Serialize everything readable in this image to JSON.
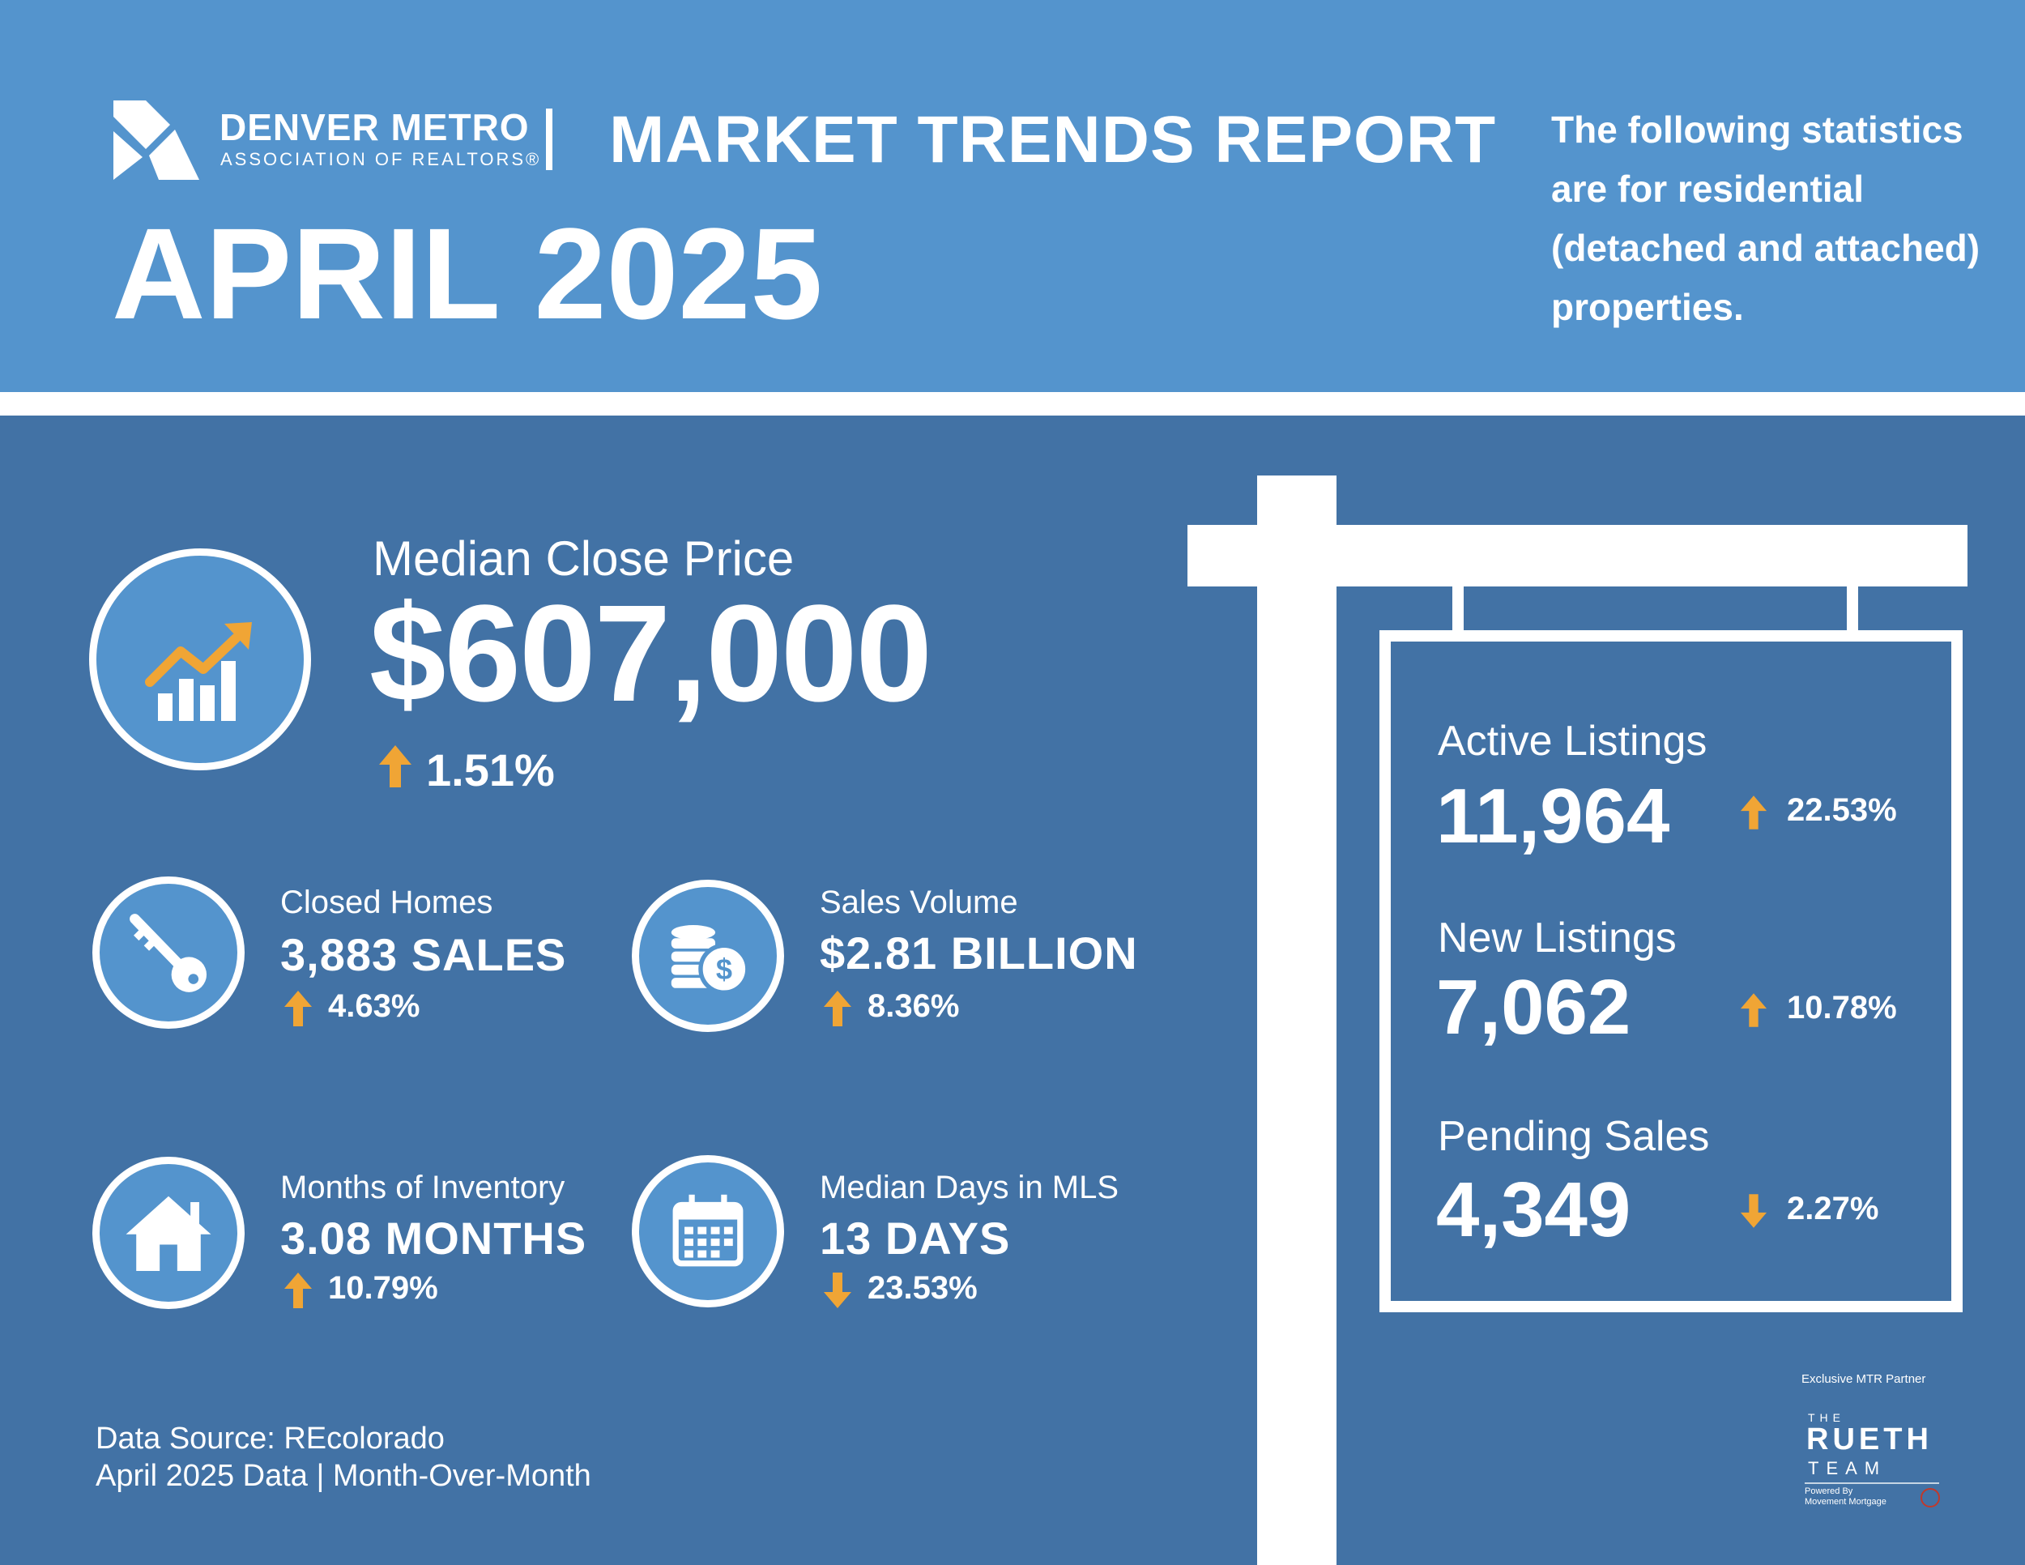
{
  "colors": {
    "header_bg": "#5494cd",
    "main_bg": "#4272a5",
    "text": "#ffffff",
    "arrow": "#f0a535",
    "badge": "#c0392b"
  },
  "header": {
    "org_name": "DENVER METRO",
    "org_sub": "ASSOCIATION OF REALTORS®",
    "report_title": "MARKET TRENDS REPORT",
    "month": "APRIL 2025",
    "note": "The following statistics are for residential (detached and attached) properties."
  },
  "median_price": {
    "label": "Median Close Price",
    "value": "$607,000",
    "change": "1.51%",
    "direction": "up",
    "icon": "rising-chart-icon"
  },
  "stats": {
    "closed_homes": {
      "label": "Closed Homes",
      "value": "3,883 SALES",
      "change": "4.63%",
      "direction": "up",
      "icon": "key-icon"
    },
    "sales_volume": {
      "label": "Sales Volume",
      "value": "$2.81 BILLION",
      "change": "8.36%",
      "direction": "up",
      "icon": "coins-icon"
    },
    "months_inventory": {
      "label": "Months of Inventory",
      "value": "3.08 MONTHS",
      "change": "10.79%",
      "direction": "up",
      "icon": "house-icon"
    },
    "days_in_mls": {
      "label": "Median Days in MLS",
      "value": "13 DAYS",
      "change": "23.53%",
      "direction": "down",
      "icon": "calendar-icon"
    }
  },
  "sign": {
    "active": {
      "label": "Active Listings",
      "value": "11,964",
      "change": "22.53%",
      "direction": "up"
    },
    "new": {
      "label": "New Listings",
      "value": "7,062",
      "change": "10.78%",
      "direction": "up"
    },
    "pending": {
      "label": "Pending Sales",
      "value": "4,349",
      "change": "2.27%",
      "direction": "down"
    }
  },
  "footer": {
    "source": "Data Source: REcolorado",
    "period": "April 2025 Data | Month-Over-Month"
  },
  "partner": {
    "note": "Exclusive MTR Partner",
    "the": "THE",
    "name": "RUETH",
    "team": "TEAM",
    "powered": "Powered By Movement Mortgage"
  }
}
